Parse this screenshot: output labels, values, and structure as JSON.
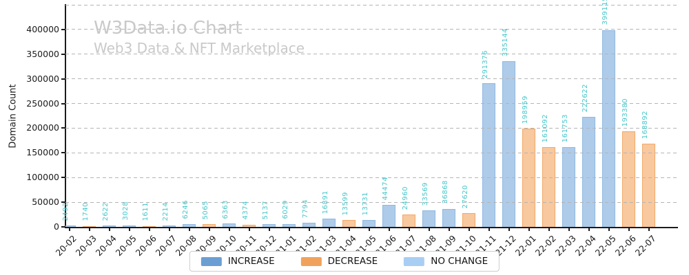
{
  "chart_data": {
    "type": "bar",
    "title": "W3Data.io Chart",
    "subtitle": "Web3 Data & NFT Marketplace",
    "xlabel": "",
    "ylabel": "Domain Count",
    "ylim": [
      0,
      450000
    ],
    "yticks": [
      0,
      50000,
      100000,
      150000,
      200000,
      250000,
      300000,
      350000,
      400000
    ],
    "grid": "horizontal-dashed",
    "legend_position": "bottom-center",
    "categories": [
      "20-02",
      "20-03",
      "20-04",
      "20-05",
      "20-06",
      "20-07",
      "20-08",
      "20-09",
      "20-10",
      "20-11",
      "20-12",
      "21-01",
      "21-02",
      "21-03",
      "21-04",
      "21-05",
      "21-06",
      "21-07",
      "21-08",
      "21-09",
      "21-10",
      "21-11",
      "21-12",
      "22-01",
      "22-02",
      "22-03",
      "22-04",
      "22-05",
      "22-06",
      "22-07"
    ],
    "values": [
      2492,
      1740,
      2622,
      3028,
      1611,
      2214,
      6246,
      5065,
      6363,
      4374,
      5137,
      6029,
      7794,
      16891,
      13599,
      13731,
      44474,
      24960,
      33569,
      36868,
      27620,
      291376,
      335144,
      198959,
      161092,
      161753,
      222622,
      399115,
      193380,
      168892
    ],
    "bar_types": [
      "increase",
      "decrease",
      "increase",
      "increase",
      "decrease",
      "increase",
      "increase",
      "decrease",
      "increase",
      "decrease",
      "increase",
      "increase",
      "increase",
      "increase",
      "decrease",
      "increase",
      "increase",
      "decrease",
      "increase",
      "increase",
      "decrease",
      "increase",
      "increase",
      "decrease",
      "decrease",
      "increase",
      "increase",
      "increase",
      "decrease",
      "decrease"
    ],
    "value_label_color": "#45c6cb",
    "colors": {
      "increase_fill": "#aecbea",
      "increase_edge": "#8fb8e0",
      "decrease_fill": "#f8c89e",
      "decrease_edge": "#f1a967",
      "no_change_fill": "#cfe5fa",
      "no_change_edge": "#a9cef3"
    },
    "legend": {
      "items": [
        {
          "id": "increase",
          "label": "INCREASE",
          "color": "#6b9fd4"
        },
        {
          "id": "decrease",
          "label": "DECREASE",
          "color": "#f0a25c"
        },
        {
          "id": "no-change",
          "label": "NO CHANGE",
          "color": "#a9cef3"
        }
      ]
    }
  }
}
